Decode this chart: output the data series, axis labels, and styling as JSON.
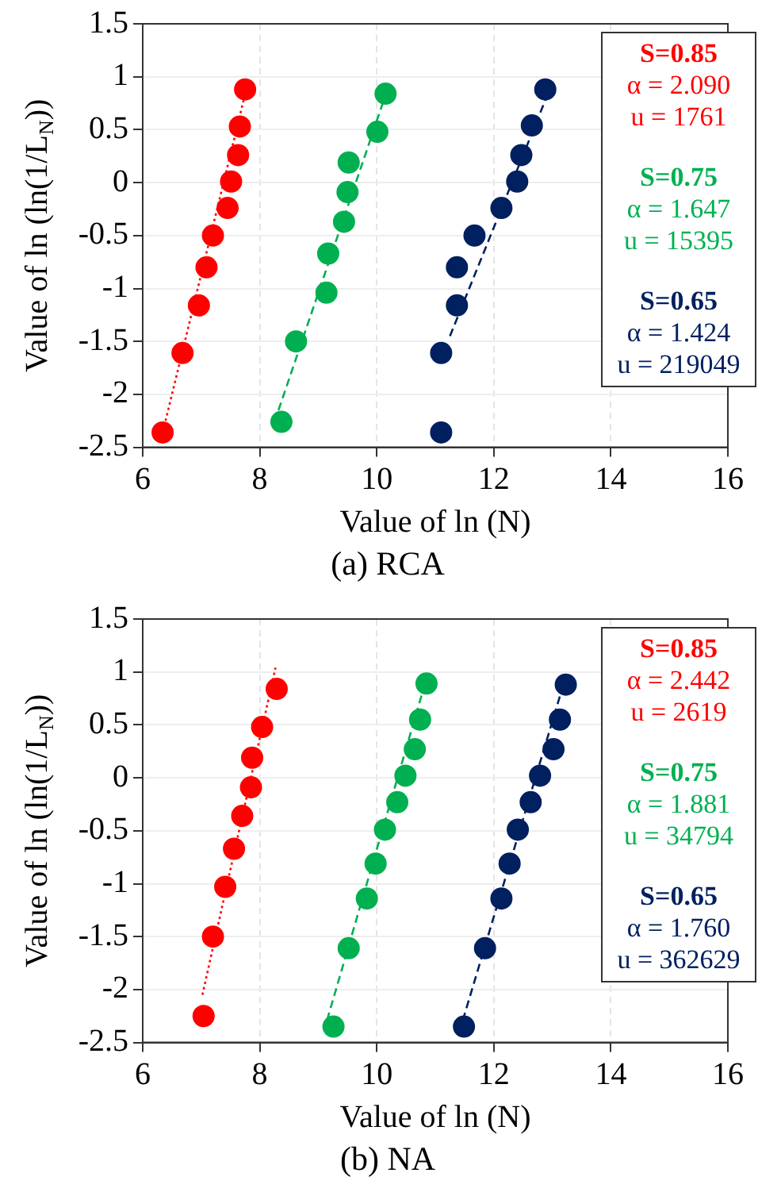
{
  "chart_data": [
    {
      "type": "scatter",
      "title": "(a) RCA",
      "xlabel": "Value of ln (N)",
      "ylabel": "Value of ln (ln(1/L$_{N}$))",
      "xlim": [
        6,
        16
      ],
      "xticks": [
        6,
        8,
        10,
        12,
        14,
        16
      ],
      "ylim": [
        -2.5,
        1.5
      ],
      "yticks": [
        -2.5,
        -2,
        -1.5,
        -1,
        -0.5,
        0,
        0.5,
        1,
        1.5
      ],
      "grid": true,
      "legend": "right",
      "annotations": [
        "α = 2.090",
        "u = 1761",
        "α = 1.647",
        "u = 15395",
        "α = 1.424",
        "u = 219049"
      ],
      "series": [
        {
          "name": "S=0.85",
          "color": "#ff0000",
          "marker": "circle",
          "x": [
            6.34,
            6.68,
            6.96,
            7.09,
            7.2,
            7.45,
            7.51,
            7.63,
            7.66,
            7.75
          ],
          "values": [
            -2.36,
            -1.61,
            -1.16,
            -0.8,
            -0.5,
            -0.24,
            0.01,
            0.26,
            0.53,
            0.88
          ]
        },
        {
          "name": "S=0.75",
          "color": "#00b050",
          "marker": "circle",
          "x": [
            8.37,
            8.62,
            9.14,
            9.17,
            9.44,
            9.5,
            9.52,
            10.01,
            10.15
          ],
          "values": [
            -2.26,
            -1.5,
            -1.04,
            -0.67,
            -0.37,
            -0.09,
            0.19,
            0.48,
            0.84
          ]
        },
        {
          "name": "S=0.65",
          "color": "#002060",
          "marker": "circle",
          "x": [
            11.1,
            11.1,
            11.37,
            11.37,
            11.67,
            12.13,
            12.4,
            12.47,
            12.65,
            12.88
          ],
          "values": [
            -2.36,
            -1.61,
            -1.16,
            -0.8,
            -0.5,
            -0.24,
            0.01,
            0.26,
            0.54,
            0.88
          ]
        },
        {
          "type": "line",
          "color": "#ff0000",
          "line_style": "dotted",
          "x": [
            6.39,
            7.8
          ],
          "values": [
            -2.25,
            0.95
          ]
        },
        {
          "type": "line",
          "color": "#00b050",
          "line_style": "dashed",
          "x": [
            8.32,
            10.17
          ],
          "values": [
            -2.15,
            0.86
          ]
        },
        {
          "type": "line",
          "color": "#002060",
          "line_style": "dashed",
          "x": [
            11.25,
            13.02
          ],
          "values": [
            -1.45,
            0.97
          ]
        }
      ]
    },
    {
      "type": "scatter",
      "title": "(b) NA",
      "xlabel": "Value of ln (N)",
      "ylabel": "Value of ln (ln(1/L$_{N}$))",
      "xlim": [
        6,
        16
      ],
      "xticks": [
        6,
        8,
        10,
        12,
        14,
        16
      ],
      "ylim": [
        -2.5,
        1.5
      ],
      "yticks": [
        -2.5,
        -2,
        -1.5,
        -1,
        -0.5,
        0,
        0.5,
        1,
        1.5
      ],
      "grid": true,
      "legend": "right",
      "annotations": [
        "α = 2.442",
        "u = 2619",
        "α = 1.881",
        "u = 34794",
        "α = 1.760",
        "u = 362629"
      ],
      "series": [
        {
          "name": "S=0.85",
          "color": "#ff0000",
          "marker": "circle",
          "x": [
            7.04,
            7.2,
            7.41,
            7.56,
            7.7,
            7.85,
            7.87,
            8.04,
            8.29
          ],
          "values": [
            -2.25,
            -1.5,
            -1.03,
            -0.67,
            -0.36,
            -0.09,
            0.19,
            0.48,
            0.84
          ]
        },
        {
          "name": "S=0.75",
          "color": "#00b050",
          "marker": "circle",
          "x": [
            9.26,
            9.52,
            9.83,
            9.98,
            10.14,
            10.35,
            10.49,
            10.65,
            10.74,
            10.85
          ],
          "values": [
            -2.35,
            -1.61,
            -1.14,
            -0.81,
            -0.49,
            -0.23,
            0.02,
            0.27,
            0.55,
            0.89
          ]
        },
        {
          "name": "S=0.65",
          "color": "#002060",
          "marker": "circle",
          "x": [
            11.49,
            11.85,
            12.13,
            12.27,
            12.41,
            12.63,
            12.79,
            13.02,
            13.13,
            13.23
          ],
          "values": [
            -2.35,
            -1.61,
            -1.14,
            -0.81,
            -0.49,
            -0.23,
            0.02,
            0.27,
            0.55,
            0.88
          ]
        },
        {
          "type": "line",
          "color": "#ff0000",
          "line_style": "dotted",
          "x": [
            7.02,
            8.27
          ],
          "values": [
            -2.05,
            1.04
          ]
        },
        {
          "type": "line",
          "color": "#00b050",
          "line_style": "dashed",
          "x": [
            9.15,
            10.84
          ],
          "values": [
            -2.29,
            0.92
          ]
        },
        {
          "type": "line",
          "color": "#002060",
          "line_style": "dashed",
          "x": [
            11.47,
            13.21
          ],
          "values": [
            -2.29,
            0.92
          ]
        }
      ]
    }
  ]
}
